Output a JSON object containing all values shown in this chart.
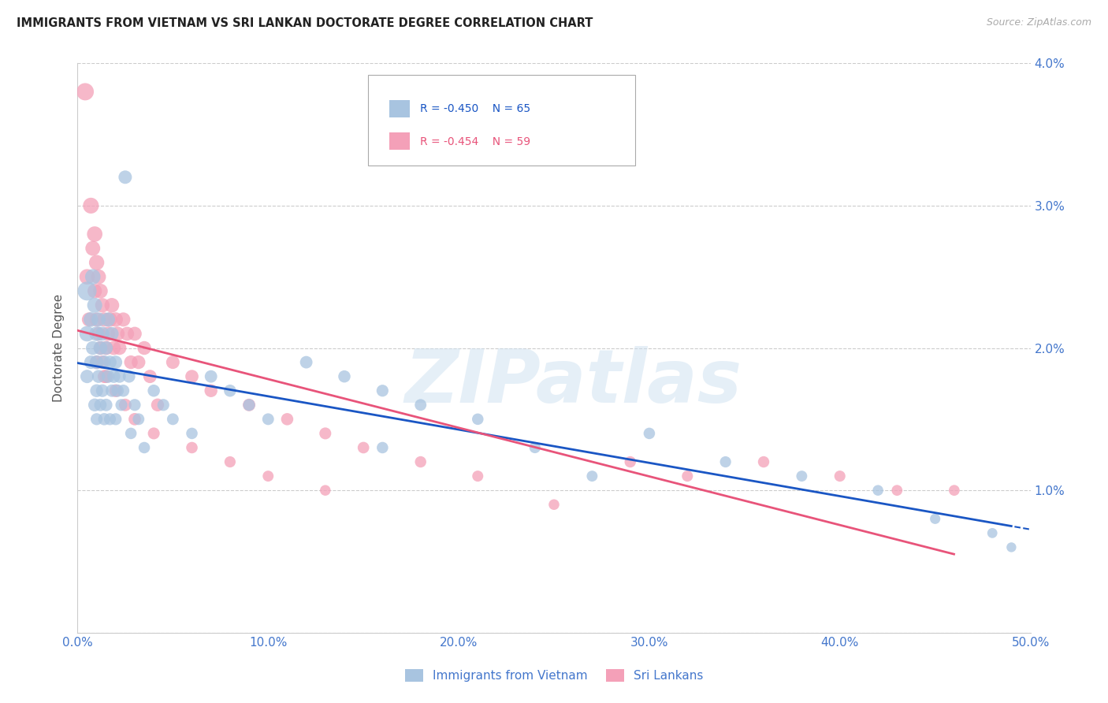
{
  "title": "IMMIGRANTS FROM VIETNAM VS SRI LANKAN DOCTORATE DEGREE CORRELATION CHART",
  "source": "Source: ZipAtlas.com",
  "ylabel": "Doctorate Degree",
  "xmin": 0.0,
  "xmax": 0.5,
  "ymin": 0.0,
  "ymax": 0.04,
  "yticks": [
    0.0,
    0.01,
    0.02,
    0.03,
    0.04
  ],
  "ytick_labels": [
    "",
    "1.0%",
    "2.0%",
    "3.0%",
    "4.0%"
  ],
  "xticks": [
    0.0,
    0.1,
    0.2,
    0.3,
    0.4,
    0.5
  ],
  "xtick_labels": [
    "0.0%",
    "10.0%",
    "20.0%",
    "30.0%",
    "40.0%",
    "50.0%"
  ],
  "color_blue": "#a8c4e0",
  "color_pink": "#f4a0b8",
  "color_blue_line": "#1a56c4",
  "color_pink_line": "#e8547a",
  "color_axis_labels": "#4477cc",
  "color_grid": "#cccccc",
  "watermark": "ZIPatlas",
  "vietnam_x": [
    0.005,
    0.005,
    0.005,
    0.007,
    0.007,
    0.008,
    0.008,
    0.009,
    0.009,
    0.01,
    0.01,
    0.01,
    0.01,
    0.011,
    0.011,
    0.012,
    0.012,
    0.013,
    0.013,
    0.014,
    0.014,
    0.015,
    0.015,
    0.016,
    0.016,
    0.017,
    0.017,
    0.018,
    0.018,
    0.019,
    0.02,
    0.02,
    0.021,
    0.022,
    0.023,
    0.024,
    0.025,
    0.027,
    0.028,
    0.03,
    0.032,
    0.035,
    0.04,
    0.045,
    0.05,
    0.06,
    0.07,
    0.08,
    0.09,
    0.1,
    0.12,
    0.14,
    0.16,
    0.18,
    0.21,
    0.24,
    0.27,
    0.3,
    0.34,
    0.38,
    0.42,
    0.45,
    0.48,
    0.49,
    0.16
  ],
  "vietnam_y": [
    0.024,
    0.021,
    0.018,
    0.022,
    0.019,
    0.025,
    0.02,
    0.023,
    0.016,
    0.021,
    0.019,
    0.017,
    0.015,
    0.022,
    0.018,
    0.02,
    0.016,
    0.021,
    0.017,
    0.019,
    0.015,
    0.02,
    0.016,
    0.022,
    0.018,
    0.019,
    0.015,
    0.021,
    0.017,
    0.018,
    0.019,
    0.015,
    0.017,
    0.018,
    0.016,
    0.017,
    0.032,
    0.018,
    0.014,
    0.016,
    0.015,
    0.013,
    0.017,
    0.016,
    0.015,
    0.014,
    0.018,
    0.017,
    0.016,
    0.015,
    0.019,
    0.018,
    0.017,
    0.016,
    0.015,
    0.013,
    0.011,
    0.014,
    0.012,
    0.011,
    0.01,
    0.008,
    0.007,
    0.006,
    0.013
  ],
  "vietnam_sizes": [
    300,
    200,
    150,
    180,
    150,
    200,
    160,
    190,
    140,
    180,
    160,
    140,
    120,
    170,
    140,
    160,
    130,
    165,
    135,
    155,
    125,
    150,
    130,
    165,
    140,
    145,
    120,
    155,
    130,
    140,
    145,
    120,
    130,
    135,
    120,
    125,
    150,
    130,
    110,
    120,
    115,
    110,
    125,
    120,
    115,
    110,
    130,
    125,
    120,
    115,
    130,
    125,
    120,
    115,
    110,
    105,
    100,
    110,
    105,
    100,
    95,
    90,
    85,
    80,
    110
  ],
  "srilanka_x": [
    0.004,
    0.005,
    0.006,
    0.007,
    0.008,
    0.009,
    0.009,
    0.01,
    0.01,
    0.011,
    0.011,
    0.012,
    0.012,
    0.013,
    0.013,
    0.014,
    0.014,
    0.015,
    0.016,
    0.017,
    0.018,
    0.019,
    0.02,
    0.021,
    0.022,
    0.024,
    0.026,
    0.028,
    0.03,
    0.032,
    0.035,
    0.038,
    0.042,
    0.05,
    0.06,
    0.07,
    0.09,
    0.11,
    0.13,
    0.15,
    0.18,
    0.21,
    0.25,
    0.29,
    0.32,
    0.36,
    0.4,
    0.43,
    0.46,
    0.01,
    0.015,
    0.02,
    0.025,
    0.03,
    0.04,
    0.06,
    0.08,
    0.1,
    0.13
  ],
  "srilanka_y": [
    0.038,
    0.025,
    0.022,
    0.03,
    0.027,
    0.028,
    0.024,
    0.026,
    0.022,
    0.025,
    0.021,
    0.024,
    0.02,
    0.023,
    0.019,
    0.022,
    0.018,
    0.02,
    0.021,
    0.022,
    0.023,
    0.02,
    0.022,
    0.021,
    0.02,
    0.022,
    0.021,
    0.019,
    0.021,
    0.019,
    0.02,
    0.018,
    0.016,
    0.019,
    0.018,
    0.017,
    0.016,
    0.015,
    0.014,
    0.013,
    0.012,
    0.011,
    0.009,
    0.012,
    0.011,
    0.012,
    0.011,
    0.01,
    0.01,
    0.019,
    0.018,
    0.017,
    0.016,
    0.015,
    0.014,
    0.013,
    0.012,
    0.011,
    0.01
  ],
  "srilanka_sizes": [
    250,
    200,
    170,
    210,
    185,
    200,
    175,
    195,
    165,
    185,
    160,
    180,
    155,
    175,
    150,
    170,
    145,
    165,
    170,
    175,
    180,
    165,
    175,
    168,
    160,
    168,
    163,
    155,
    163,
    155,
    158,
    148,
    140,
    150,
    145,
    140,
    132,
    125,
    118,
    112,
    108,
    102,
    95,
    108,
    103,
    108,
    103,
    98,
    98,
    155,
    145,
    140,
    132,
    128,
    118,
    110,
    105,
    100,
    95
  ]
}
